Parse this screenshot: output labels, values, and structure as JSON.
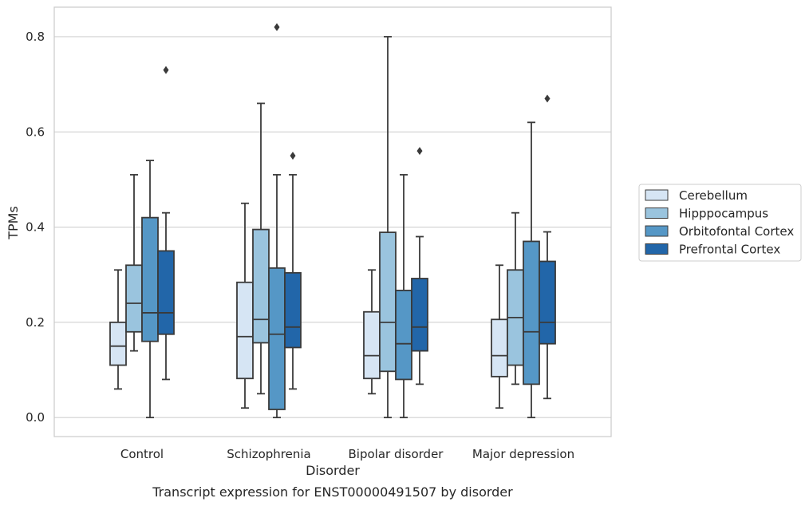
{
  "chart_data": {
    "type": "box",
    "caption": "Transcript expression for ENST00000491507 by disorder",
    "xlabel": "Disorder",
    "ylabel": "TPMs",
    "ylim": [
      -0.04,
      0.862
    ],
    "yticks": [
      "0.0",
      "0.2",
      "0.4",
      "0.6",
      "0.8"
    ],
    "ytick_values": [
      0.0,
      0.2,
      0.4,
      0.6,
      0.8
    ],
    "grid": true,
    "legend_placement": "right",
    "categories": [
      "Control",
      "Schizophrenia",
      "Bipolar disorder",
      "Major depression"
    ],
    "series": [
      {
        "name": "Cerebellum",
        "color": "#d6e5f4",
        "boxes": [
          {
            "whisker_low": 0.06,
            "q1": 0.11,
            "median": 0.15,
            "q3": 0.2,
            "whisker_high": 0.31,
            "outliers": []
          },
          {
            "whisker_low": 0.02,
            "q1": 0.082,
            "median": 0.17,
            "q3": 0.284,
            "whisker_high": 0.45,
            "outliers": []
          },
          {
            "whisker_low": 0.05,
            "q1": 0.082,
            "median": 0.13,
            "q3": 0.222,
            "whisker_high": 0.31,
            "outliers": []
          },
          {
            "whisker_low": 0.02,
            "q1": 0.086,
            "median": 0.13,
            "q3": 0.206,
            "whisker_high": 0.32,
            "outliers": []
          }
        ]
      },
      {
        "name": "Hipppocampus",
        "color": "#9ac4de",
        "boxes": [
          {
            "whisker_low": 0.14,
            "q1": 0.18,
            "median": 0.24,
            "q3": 0.32,
            "whisker_high": 0.51,
            "outliers": []
          },
          {
            "whisker_low": 0.05,
            "q1": 0.157,
            "median": 0.206,
            "q3": 0.395,
            "whisker_high": 0.66,
            "outliers": []
          },
          {
            "whisker_low": 0.0,
            "q1": 0.097,
            "median": 0.2,
            "q3": 0.389,
            "whisker_high": 0.8,
            "outliers": []
          },
          {
            "whisker_low": 0.07,
            "q1": 0.11,
            "median": 0.21,
            "q3": 0.31,
            "whisker_high": 0.43,
            "outliers": []
          }
        ]
      },
      {
        "name": "Orbitofontal Cortex",
        "color": "#5597c6",
        "boxes": [
          {
            "whisker_low": 0.0,
            "q1": 0.16,
            "median": 0.22,
            "q3": 0.42,
            "whisker_high": 0.54,
            "outliers": []
          },
          {
            "whisker_low": 0.0,
            "q1": 0.017,
            "median": 0.175,
            "q3": 0.314,
            "whisker_high": 0.51,
            "outliers": [
              0.82
            ]
          },
          {
            "whisker_low": 0.0,
            "q1": 0.08,
            "median": 0.155,
            "q3": 0.267,
            "whisker_high": 0.51,
            "outliers": []
          },
          {
            "whisker_low": 0.0,
            "q1": 0.07,
            "median": 0.18,
            "q3": 0.37,
            "whisker_high": 0.62,
            "outliers": []
          }
        ]
      },
      {
        "name": "Prefrontal Cortex",
        "color": "#2266a9",
        "boxes": [
          {
            "whisker_low": 0.08,
            "q1": 0.175,
            "median": 0.22,
            "q3": 0.35,
            "whisker_high": 0.43,
            "outliers": [
              0.73
            ]
          },
          {
            "whisker_low": 0.06,
            "q1": 0.147,
            "median": 0.19,
            "q3": 0.304,
            "whisker_high": 0.51,
            "outliers": [
              0.55
            ]
          },
          {
            "whisker_low": 0.07,
            "q1": 0.14,
            "median": 0.19,
            "q3": 0.292,
            "whisker_high": 0.38,
            "outliers": [
              0.56
            ]
          },
          {
            "whisker_low": 0.04,
            "q1": 0.155,
            "median": 0.2,
            "q3": 0.328,
            "whisker_high": 0.39,
            "outliers": [
              0.67
            ]
          }
        ]
      }
    ]
  }
}
